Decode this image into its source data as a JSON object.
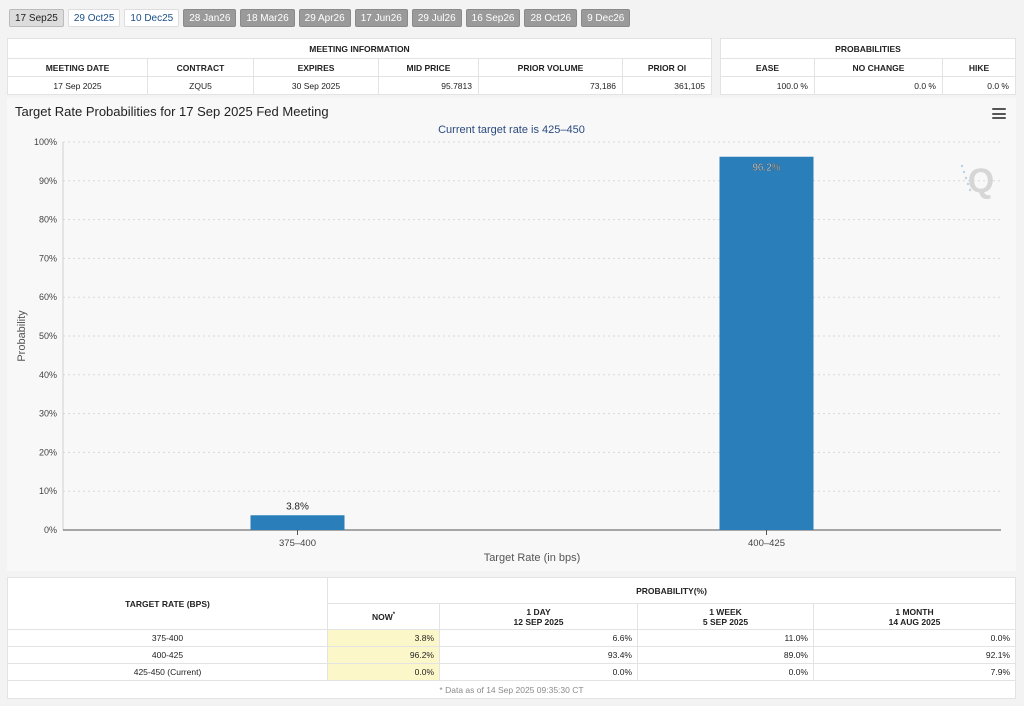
{
  "tabs": [
    {
      "label": "17 Sep25",
      "style": "selected"
    },
    {
      "label": "29 Oct25",
      "style": "light"
    },
    {
      "label": "10 Dec25",
      "style": "light"
    },
    {
      "label": "28 Jan26",
      "style": "dark"
    },
    {
      "label": "18 Mar26",
      "style": "dark"
    },
    {
      "label": "29 Apr26",
      "style": "dark"
    },
    {
      "label": "17 Jun26",
      "style": "dark"
    },
    {
      "label": "29 Jul26",
      "style": "dark"
    },
    {
      "label": "16 Sep26",
      "style": "dark"
    },
    {
      "label": "28 Oct26",
      "style": "dark"
    },
    {
      "label": "9 Dec26",
      "style": "dark"
    }
  ],
  "meeting_info": {
    "title": "MEETING INFORMATION",
    "headers": [
      "MEETING DATE",
      "CONTRACT",
      "EXPIRES",
      "MID PRICE",
      "PRIOR VOLUME",
      "PRIOR OI"
    ],
    "values": [
      "17 Sep 2025",
      "ZQU5",
      "30 Sep 2025",
      "95.7813",
      "73,186",
      "361,105"
    ]
  },
  "probabilities": {
    "title": "PROBABILITIES",
    "headers": [
      "EASE",
      "NO CHANGE",
      "HIKE"
    ],
    "values": [
      "100.0 %",
      "0.0 %",
      "0.0 %"
    ]
  },
  "chart": {
    "title": "Target Rate Probabilities for 17 Sep 2025 Fed Meeting",
    "subtitle": "Current target rate is 425–450",
    "menu_icon": "hamburger-menu-icon",
    "watermark_icon": "q-logo-icon",
    "bar_color": "#2a7fba"
  },
  "chart_data": {
    "type": "bar",
    "title": "Target Rate Probabilities for 17 Sep 2025 Fed Meeting",
    "subtitle": "Current target rate is 425–450",
    "categories": [
      "375–400",
      "400–425"
    ],
    "values": [
      3.8,
      96.2
    ],
    "data_labels": [
      "3.8%",
      "96.2%"
    ],
    "xlabel": "Target Rate (in bps)",
    "ylabel": "Probability",
    "ylim": [
      0,
      100
    ],
    "yticks": [
      "0%",
      "10%",
      "20%",
      "30%",
      "40%",
      "50%",
      "60%",
      "70%",
      "80%",
      "90%",
      "100%"
    ],
    "grid": true
  },
  "bottom_table": {
    "rate_header": "TARGET RATE (BPS)",
    "prob_header": "PROBABILITY(%)",
    "cols": [
      {
        "l1": "NOW",
        "l2": "",
        "sup": "*"
      },
      {
        "l1": "1 DAY",
        "l2": "12 SEP 2025"
      },
      {
        "l1": "1 WEEK",
        "l2": "5 SEP 2025"
      },
      {
        "l1": "1 MONTH",
        "l2": "14 AUG 2025"
      }
    ],
    "rows": [
      {
        "rate": "375-400",
        "vals": [
          "3.8%",
          "6.6%",
          "11.0%",
          "0.0%"
        ]
      },
      {
        "rate": "400-425",
        "vals": [
          "96.2%",
          "93.4%",
          "89.0%",
          "92.1%"
        ]
      },
      {
        "rate": "425-450 (Current)",
        "vals": [
          "0.0%",
          "0.0%",
          "0.0%",
          "7.9%"
        ]
      }
    ],
    "footnote": "* Data as of 14 Sep 2025 09:35:30 CT"
  }
}
